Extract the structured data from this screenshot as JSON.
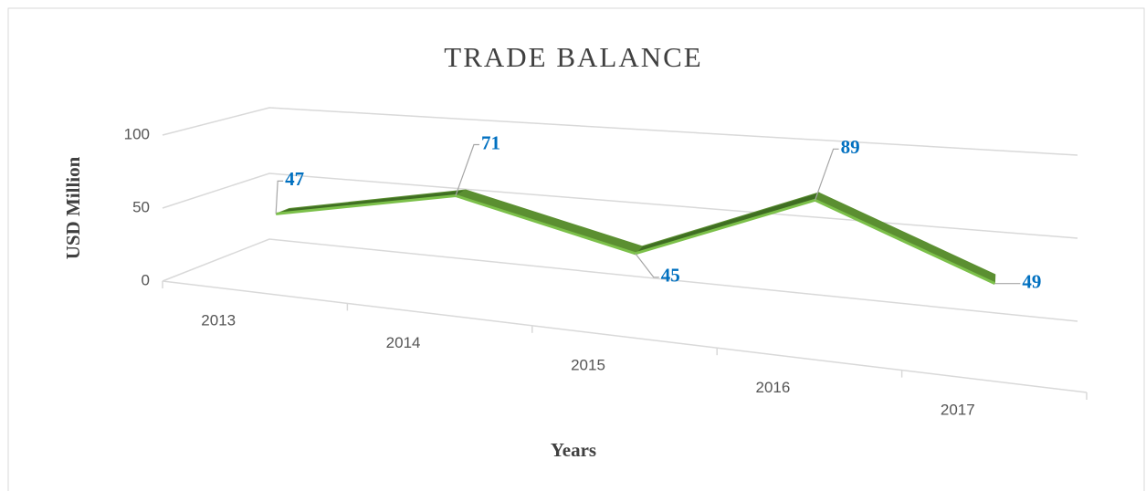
{
  "chart_data": {
    "type": "line",
    "title": "TRADE BALANCE",
    "y_label": "USD Million",
    "x_label": "Years",
    "categories": [
      "2013",
      "2014",
      "2015",
      "2016",
      "2017"
    ],
    "values": [
      47,
      71,
      45,
      89,
      49
    ],
    "color": "#5b8f31",
    "ylim": [
      0,
      100
    ],
    "yticks": [
      0,
      50,
      100
    ],
    "grid": true
  }
}
